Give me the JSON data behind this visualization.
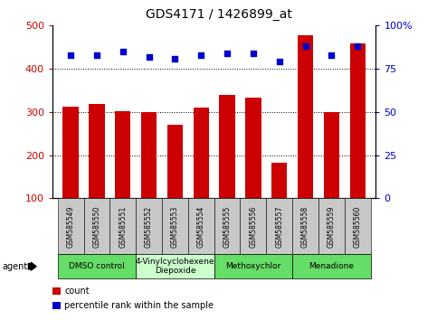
{
  "title": "GDS4171 / 1426899_at",
  "samples": [
    "GSM585549",
    "GSM585550",
    "GSM585551",
    "GSM585552",
    "GSM585553",
    "GSM585554",
    "GSM585555",
    "GSM585556",
    "GSM585557",
    "GSM585558",
    "GSM585559",
    "GSM585560"
  ],
  "counts": [
    313,
    318,
    301,
    300,
    270,
    310,
    340,
    333,
    183,
    478,
    299,
    458
  ],
  "percentiles": [
    83,
    83,
    85,
    82,
    81,
    83,
    84,
    84,
    79,
    88,
    83,
    88
  ],
  "bar_color": "#cc0000",
  "dot_color": "#0000cc",
  "ylim_left": [
    100,
    500
  ],
  "ylim_right": [
    0,
    100
  ],
  "yticks_left": [
    100,
    200,
    300,
    400,
    500
  ],
  "yticks_right": [
    0,
    25,
    50,
    75,
    100
  ],
  "ytick_labels_right": [
    "0",
    "25",
    "50",
    "75",
    "100%"
  ],
  "grid_values": [
    200,
    300,
    400
  ],
  "agent_groups": [
    {
      "label": "DMSO control",
      "start": 0,
      "end": 3,
      "color": "#66dd66"
    },
    {
      "label": "4-Vinylcyclohexene\nDiepoxide",
      "start": 3,
      "end": 6,
      "color": "#ccffcc"
    },
    {
      "label": "Methoxychlor",
      "start": 6,
      "end": 9,
      "color": "#66dd66"
    },
    {
      "label": "Menadione",
      "start": 9,
      "end": 12,
      "color": "#66dd66"
    }
  ],
  "legend_items": [
    {
      "color": "#cc0000",
      "label": "count"
    },
    {
      "color": "#0000cc",
      "label": "percentile rank within the sample"
    }
  ],
  "tick_label_color_left": "#cc0000",
  "tick_label_color_right": "#0000cc",
  "sample_box_color": "#c8c8c8",
  "plot_bg": "#ffffff"
}
